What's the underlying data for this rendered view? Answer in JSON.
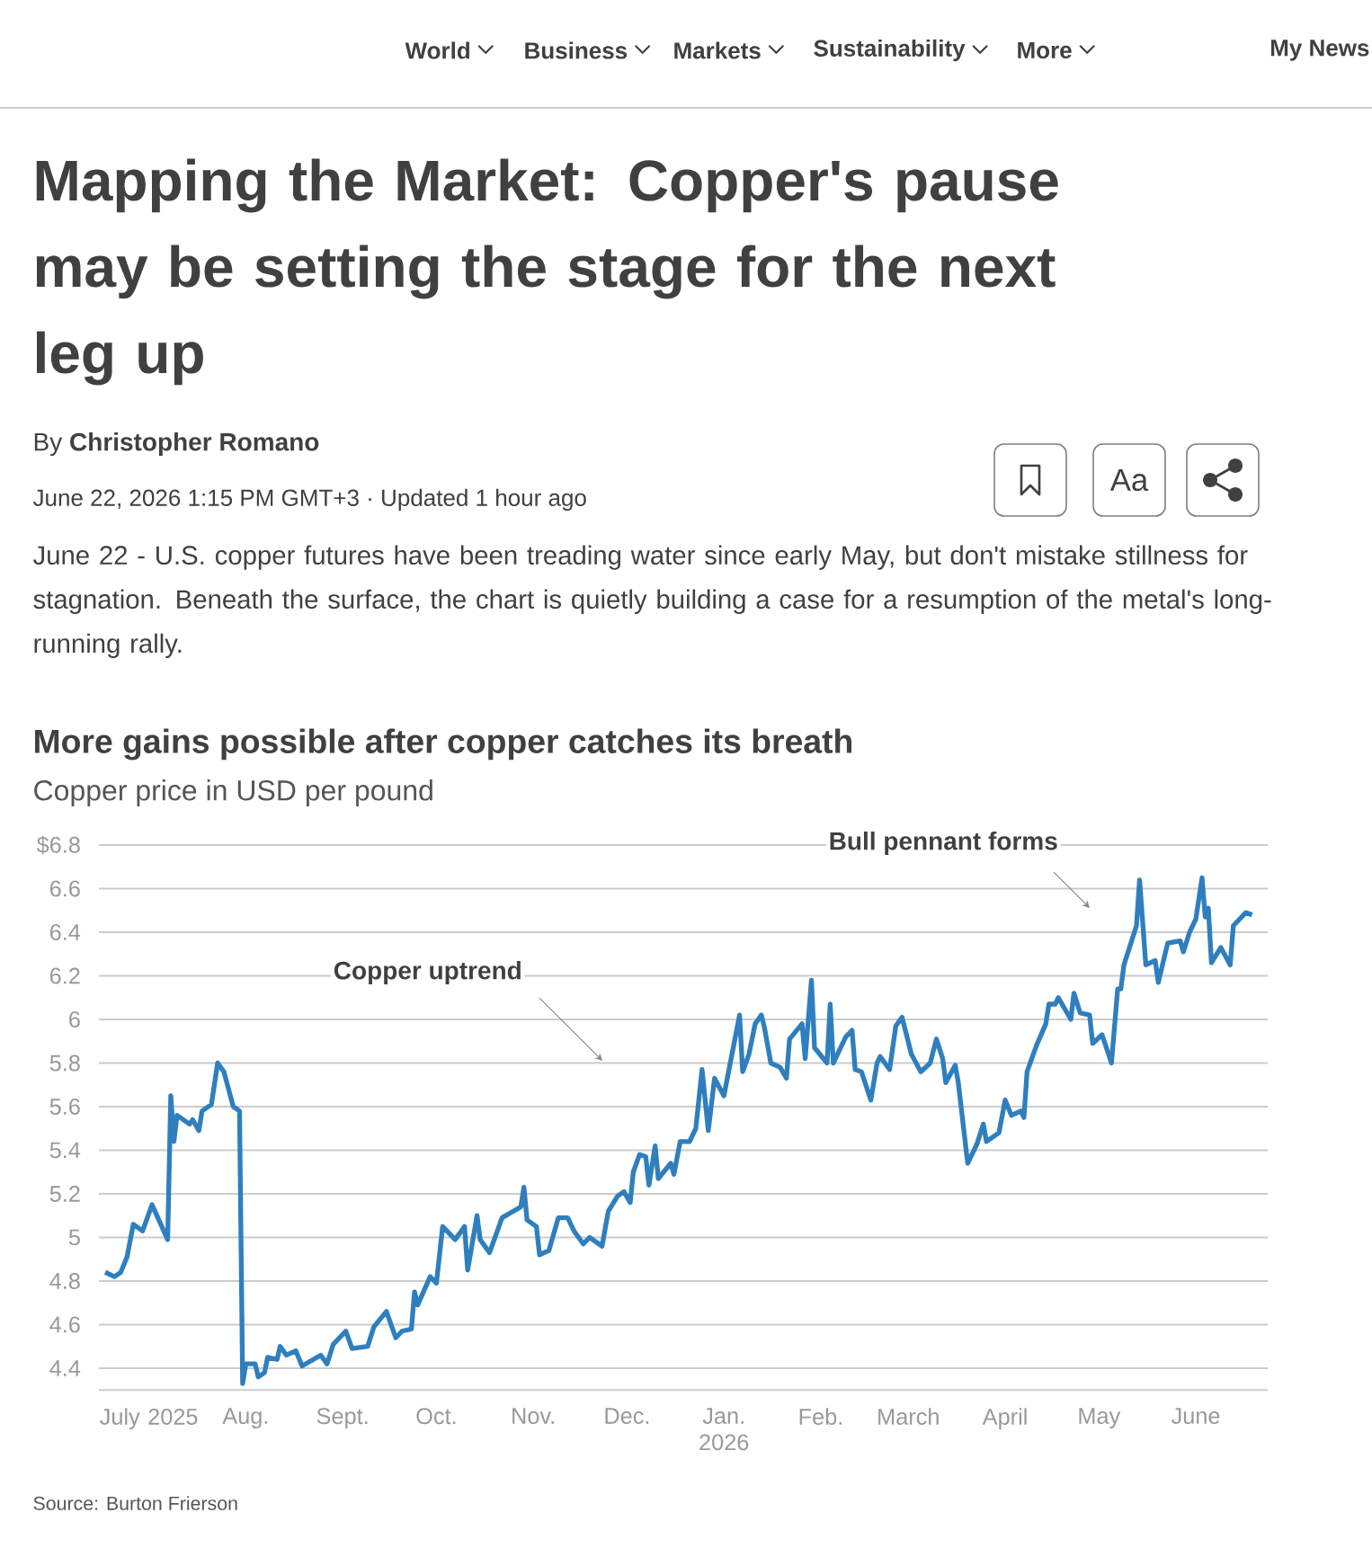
{
  "chart_data": {
    "type": "line",
    "title": "More gains possible after copper catches its breath",
    "subtitle": "Copper price in USD per pound",
    "x": [
      "2025-06-17",
      "2025-06-20",
      "2025-06-22",
      "2025-06-24",
      "2025-06-26",
      "2025-06-29",
      "2025-07-02",
      "2025-07-07",
      "2025-07-08",
      "2025-07-09",
      "2025-07-10",
      "2025-07-14",
      "2025-07-15",
      "2025-07-17",
      "2025-07-18",
      "2025-07-21",
      "2025-07-23",
      "2025-07-25",
      "2025-07-28",
      "2025-07-30",
      "2025-07-31",
      "2025-08-01",
      "2025-08-04",
      "2025-08-05",
      "2025-08-07",
      "2025-08-08",
      "2025-08-11",
      "2025-08-12",
      "2025-08-14",
      "2025-08-17",
      "2025-08-19",
      "2025-08-25",
      "2025-08-27",
      "2025-08-29",
      "2025-09-02",
      "2025-09-04",
      "2025-09-09",
      "2025-09-11",
      "2025-09-15",
      "2025-09-18",
      "2025-09-20",
      "2025-09-23",
      "2025-09-24",
      "2025-09-25",
      "2025-09-29",
      "2025-10-01",
      "2025-10-03",
      "2025-10-07",
      "2025-10-10",
      "2025-10-11",
      "2025-10-14",
      "2025-10-15",
      "2025-10-18",
      "2025-10-19",
      "2025-10-22",
      "2025-10-28",
      "2025-10-29",
      "2025-10-30",
      "2025-11-02",
      "2025-11-03",
      "2025-11-06",
      "2025-11-09",
      "2025-11-12",
      "2025-11-14",
      "2025-11-17",
      "2025-11-19",
      "2025-11-23",
      "2025-11-25",
      "2025-11-28",
      "2025-11-30",
      "2025-12-02",
      "2025-12-03",
      "2025-12-05",
      "2025-12-07",
      "2025-12-08",
      "2025-12-10",
      "2025-12-11",
      "2025-12-15",
      "2025-12-16",
      "2025-12-18",
      "2025-12-21",
      "2025-12-23",
      "2025-12-25",
      "2025-12-27",
      "2025-12-29",
      "2026-01-01",
      "2026-01-06",
      "2026-01-07",
      "2026-01-09",
      "2026-01-11",
      "2026-01-13",
      "2026-01-14",
      "2026-01-16",
      "2026-01-19",
      "2026-01-21",
      "2026-01-22",
      "2026-01-26",
      "2026-01-27",
      "2026-01-29",
      "2026-01-30",
      "2026-02-03",
      "2026-02-04",
      "2026-02-05",
      "2026-02-09",
      "2026-02-11",
      "2026-02-12",
      "2026-02-14",
      "2026-02-17",
      "2026-02-19",
      "2026-02-20",
      "2026-02-23",
      "2026-02-25",
      "2026-02-27",
      "2026-03-02",
      "2026-03-05",
      "2026-03-08",
      "2026-03-10",
      "2026-03-12",
      "2026-03-13",
      "2026-03-16",
      "2026-03-17",
      "2026-03-20",
      "2026-03-23",
      "2026-03-25",
      "2026-03-26",
      "2026-03-30",
      "2026-04-01",
      "2026-04-03",
      "2026-04-06",
      "2026-04-07",
      "2026-04-08",
      "2026-04-11",
      "2026-04-14",
      "2026-04-15",
      "2026-04-17",
      "2026-04-18",
      "2026-04-22",
      "2026-04-23",
      "2026-04-25",
      "2026-04-28",
      "2026-04-29",
      "2026-05-02",
      "2026-05-05",
      "2026-05-07",
      "2026-05-08",
      "2026-05-09",
      "2026-05-11",
      "2026-05-13",
      "2026-05-14",
      "2026-05-16",
      "2026-05-19",
      "2026-05-20",
      "2026-05-22",
      "2026-05-23",
      "2026-05-27",
      "2026-05-28",
      "2026-05-30",
      "2026-06-01",
      "2026-06-03",
      "2026-06-04",
      "2026-06-05",
      "2026-06-06",
      "2026-06-09",
      "2026-06-12",
      "2026-06-13",
      "2026-06-17",
      "2026-06-19"
    ],
    "series": [
      {
        "color": "#2f7fbf",
        "values": [
          4.84,
          4.82,
          4.84,
          4.91,
          5.06,
          5.03,
          5.15,
          4.99,
          5.65,
          5.44,
          5.56,
          5.52,
          5.54,
          5.49,
          5.58,
          5.61,
          5.8,
          5.76,
          5.6,
          5.58,
          4.33,
          4.42,
          4.42,
          4.36,
          4.38,
          4.45,
          4.44,
          4.5,
          4.46,
          4.48,
          4.41,
          4.46,
          4.42,
          4.51,
          4.57,
          4.49,
          4.5,
          4.59,
          4.66,
          4.54,
          4.57,
          4.58,
          4.75,
          4.69,
          4.82,
          4.79,
          5.05,
          4.99,
          5.05,
          4.85,
          5.1,
          4.99,
          4.93,
          4.97,
          5.09,
          5.14,
          5.23,
          5.08,
          5.05,
          4.92,
          4.94,
          5.09,
          5.09,
          5.03,
          4.97,
          5.0,
          4.96,
          5.12,
          5.19,
          5.21,
          5.16,
          5.3,
          5.38,
          5.37,
          5.24,
          5.42,
          5.27,
          5.34,
          5.29,
          5.44,
          5.44,
          5.5,
          5.77,
          5.49,
          5.73,
          5.65,
          6.02,
          5.76,
          5.84,
          5.98,
          6.02,
          5.96,
          5.8,
          5.78,
          5.73,
          5.91,
          5.98,
          5.82,
          6.18,
          5.87,
          5.8,
          6.07,
          5.8,
          5.92,
          5.95,
          5.77,
          5.76,
          5.63,
          5.8,
          5.83,
          5.77,
          5.97,
          6.01,
          5.84,
          5.76,
          5.8,
          5.91,
          5.82,
          5.71,
          5.79,
          5.71,
          5.34,
          5.43,
          5.52,
          5.44,
          5.48,
          5.63,
          5.56,
          5.58,
          5.55,
          5.76,
          5.88,
          5.98,
          6.07,
          6.07,
          6.1,
          6.0,
          6.12,
          6.03,
          6.02,
          5.89,
          5.93,
          5.8,
          6.14,
          6.14,
          6.25,
          6.34,
          6.43,
          6.64,
          6.25,
          6.27,
          6.17,
          6.29,
          6.35,
          6.36,
          6.31,
          6.4,
          6.46,
          6.65,
          6.47,
          6.51,
          6.26,
          6.33,
          6.25,
          6.43,
          6.49,
          6.48
        ]
      }
    ],
    "xlim": [
      "2025-06-15",
      "2026-06-24"
    ],
    "xticks": [
      {
        "value": "2025-07-01",
        "label": "July 2025"
      },
      {
        "value": "2025-08-01",
        "label": "Aug."
      },
      {
        "value": "2025-09-01",
        "label": "Sept."
      },
      {
        "value": "2025-10-01",
        "label": "Oct."
      },
      {
        "value": "2025-11-01",
        "label": "Nov."
      },
      {
        "value": "2025-12-01",
        "label": "Dec."
      },
      {
        "value": "2026-01-01",
        "label": "Jan. 2026"
      },
      {
        "value": "2026-02-01",
        "label": "Feb."
      },
      {
        "value": "2026-03-01",
        "label": "March"
      },
      {
        "value": "2026-04-01",
        "label": "April"
      },
      {
        "value": "2026-05-01",
        "label": "May"
      },
      {
        "value": "2026-06-01",
        "label": "June"
      }
    ],
    "ylim": [
      4.3,
      6.8
    ],
    "yticks": [
      4.4,
      4.6,
      4.8,
      5,
      5.2,
      5.4,
      5.6,
      5.8,
      6,
      6.2,
      6.4,
      6.6,
      {
        "value": 6.8,
        "label": "$6.8"
      }
    ],
    "grid": "y",
    "annotations": [
      "World",
      "Business",
      "Markets",
      "Sustainability",
      "More",
      "My News",
      "Mapping the Market: Copper's pause may be setting the stage for the next leg up",
      "By **Christopher Romano**",
      "June 22, 2026 1:15 PM GMT+3 · Updated 1 hour ago",
      "Aa",
      "June 22 - U.S. copper futures have been treading water since early May, but don't mistake stillness for stagnation. Beneath the surface, the chart is quietly building a case for a resumption of the metal's long-running rally.",
      "Source: Burton Frierson",
      "Copper uptrend",
      "Bull pennant forms"
    ]
  }
}
